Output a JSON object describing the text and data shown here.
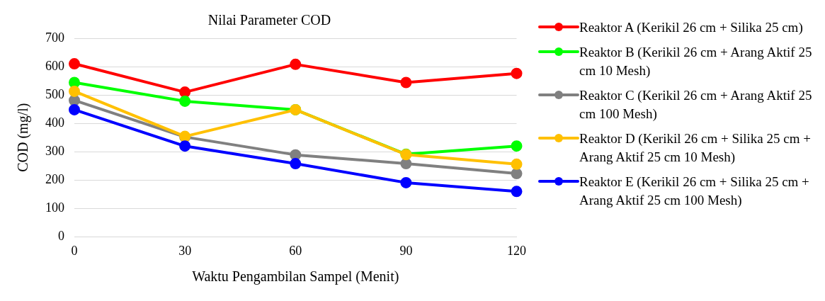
{
  "chart_data": {
    "type": "line",
    "title": "Nilai Parameter COD",
    "xlabel": "Waktu Pengambilan Sampel (Menit)",
    "ylabel": "COD (mg/l)",
    "categories": [
      "0",
      "30",
      "60",
      "90",
      "120"
    ],
    "series": [
      {
        "name": "Reaktor A (Kerikil 26 cm + Silika 25 cm)",
        "color": "#ff0000",
        "values": [
          610,
          510,
          608,
          544,
          576
        ]
      },
      {
        "name": "Reaktor B (Kerikil 26 cm + Arang Aktif 25 cm 10 Mesh)",
        "color": "#00ff00",
        "values": [
          544,
          478,
          448,
          291,
          320
        ]
      },
      {
        "name": "Reaktor C (Kerikil 26 cm + Arang Aktif 25 cm 100 Mesh)",
        "color": "#808080",
        "values": [
          481,
          352,
          289,
          258,
          223
        ]
      },
      {
        "name": "Reaktor D (Kerikil 26 cm + Silika 25 cm + Arang Aktif 25 cm 10 Mesh)",
        "color": "#ffc000",
        "values": [
          513,
          354,
          448,
          290,
          256
        ]
      },
      {
        "name": "Reaktor E (Kerikil 26 cm + Silika 25 cm + Arang Aktif 25 cm 100 Mesh)",
        "color": "#0000ff",
        "values": [
          448,
          320,
          258,
          191,
          160
        ]
      }
    ],
    "ylim": [
      0,
      700
    ],
    "yticks": [
      0,
      100,
      200,
      300,
      400,
      500,
      600,
      700
    ],
    "grid": "y",
    "legend": "right",
    "marker": "circle",
    "line_style": "solid"
  }
}
